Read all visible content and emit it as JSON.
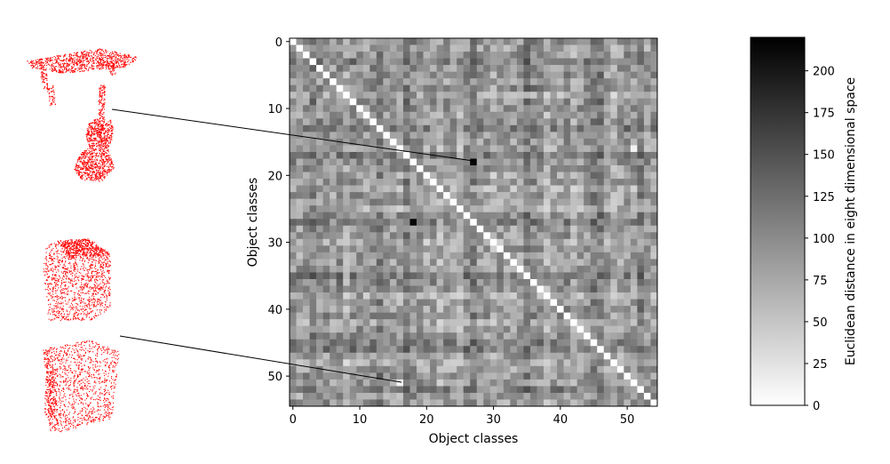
{
  "chart_data": {
    "type": "heatmap",
    "title": "",
    "xlabel": "Object classes",
    "ylabel": "Object classes",
    "n_classes": 55,
    "xticks": [
      0,
      10,
      20,
      30,
      40,
      50
    ],
    "yticks": [
      0,
      10,
      20,
      30,
      40,
      50
    ],
    "colormap": "gray_r",
    "colorbar": {
      "label": "Euclidean distance in eight dimensional space",
      "vmin": 0,
      "vmax": 220,
      "ticks": [
        0,
        25,
        50,
        75,
        100,
        125,
        150,
        175,
        200
      ]
    },
    "highlighted_cells": [
      {
        "row": 18,
        "col": 27,
        "value": 215
      },
      {
        "row": 51,
        "col": 16,
        "value": 10
      }
    ],
    "strong_rows": [
      3,
      13,
      17,
      27,
      35,
      45,
      46,
      52
    ],
    "weak_rows": [
      8,
      22,
      25,
      30,
      38,
      42,
      48
    ],
    "point_color": "#ff0000"
  }
}
